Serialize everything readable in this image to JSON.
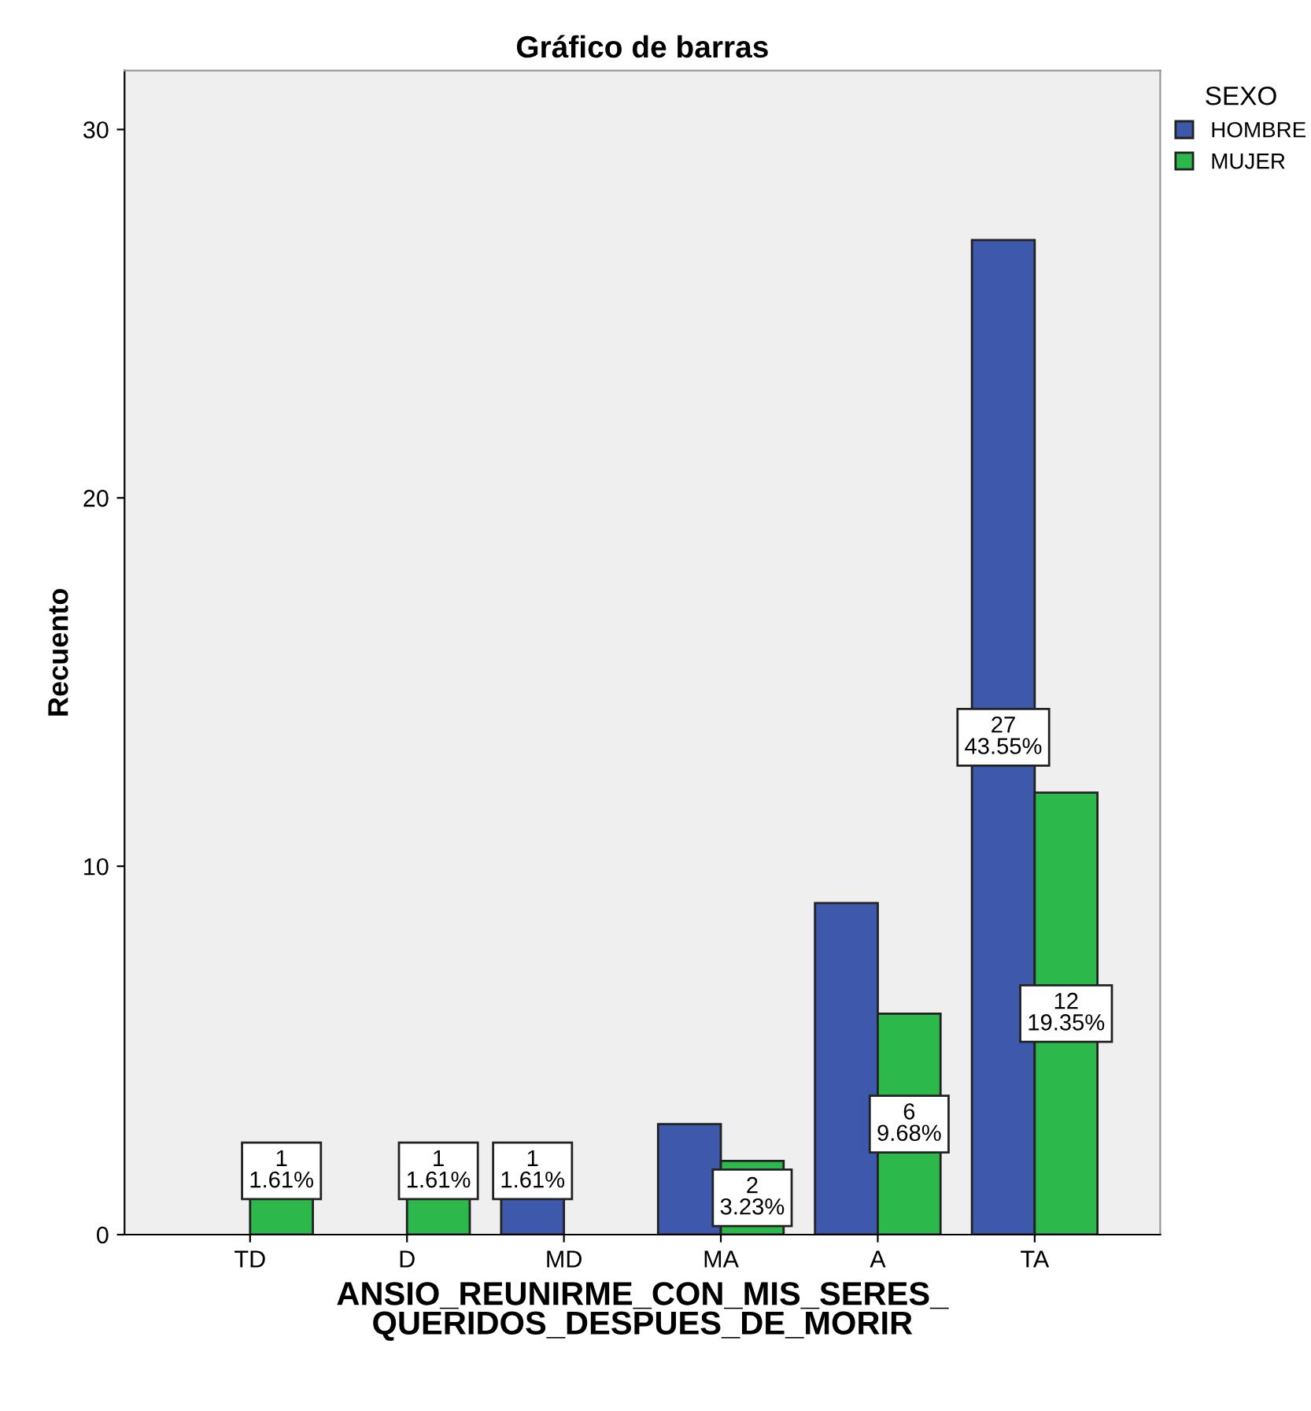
{
  "chart_data": {
    "type": "bar",
    "title": "Gráfico de barras",
    "xlabel": "ANSIO_REUNIRME_CON_MIS_SERES_\nQUERIDOS_DESPUES_DE_MORIR",
    "ylabel": "Recuento",
    "legend_title": "SEXO",
    "legend": "top right",
    "grid": false,
    "categories": [
      "TD",
      "D",
      "MD",
      "MA",
      "A",
      "TA"
    ],
    "series": [
      {
        "name": "HOMBRE",
        "color": "#3e58ac",
        "values": [
          null,
          null,
          1,
          3,
          9,
          27
        ],
        "value_labels": [
          null,
          null,
          "1\n1.61%",
          null,
          null,
          "27\n43.55%"
        ]
      },
      {
        "name": "MUJER",
        "color": "#2db84b",
        "values": [
          1,
          1,
          null,
          2,
          6,
          12
        ],
        "value_labels": [
          "1\n1.61%",
          "1\n1.61%",
          null,
          "2\n3.23%",
          "6\n9.68%",
          "12\n19.35%"
        ]
      }
    ],
    "ylim": [
      0,
      31.6
    ],
    "yticks": [
      0,
      10,
      20,
      30
    ]
  }
}
